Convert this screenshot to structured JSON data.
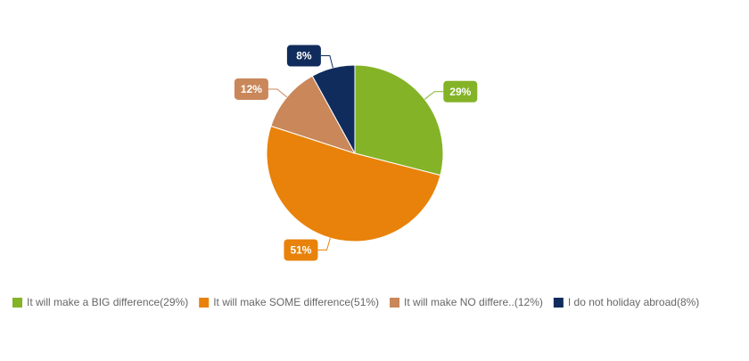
{
  "chart_data": {
    "type": "pie",
    "categories": [
      "It will make a BIG difference(29%)",
      "It will make SOME difference(51%)",
      "It will make NO differe..(12%)",
      "I do not holiday abroad(8%)"
    ],
    "values": [
      29,
      51,
      12,
      8
    ],
    "value_labels": [
      "29%",
      "51%",
      "12%",
      "8%"
    ],
    "colors": [
      "#84b327",
      "#e8820a",
      "#c9875a",
      "#102c5c"
    ],
    "legend": "bottom"
  }
}
